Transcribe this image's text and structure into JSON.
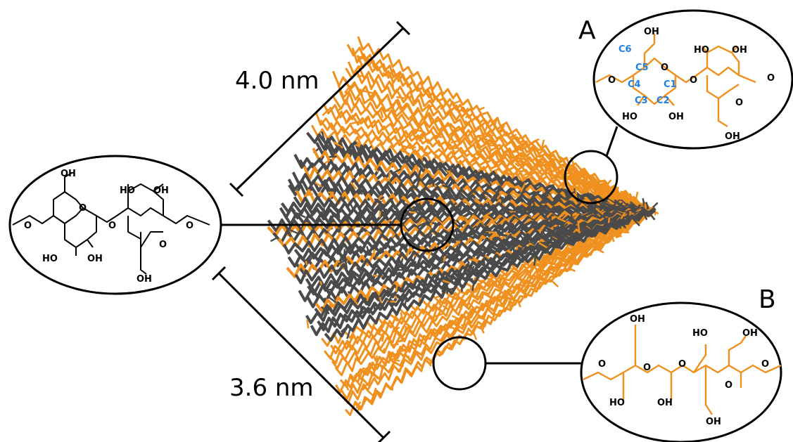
{
  "dimensions": {
    "length_label": "4.0 nm",
    "width_label": "3.6 nm"
  },
  "panels": {
    "a_label": "A",
    "b_label": "B"
  },
  "left_structure": {
    "oh_top": "OH",
    "ho_top": "HO",
    "oh_top_right": "OH",
    "ho_bottom": "HO",
    "oh_bottom": "OH",
    "oh_bottom_right": "OH",
    "ring_o1": "O",
    "ring_o2": "O",
    "link_o": "O",
    "terminal_o_left": "O",
    "terminal_o_right": "O"
  },
  "structure_a": {
    "oh_top": "OH",
    "ho_right": "HO",
    "oh_right": "OH",
    "ho_bottom": "HO",
    "oh_bottom": "OH",
    "oh_bottom_right": "OH",
    "ring_o1": "O",
    "ring_o2": "O",
    "link_o": "O",
    "terminal_o_left": "O",
    "terminal_o_right": "O",
    "carbons": [
      "C1",
      "C2",
      "C3",
      "C4",
      "C5",
      "C6"
    ]
  },
  "structure_b": {
    "oh_top": "OH",
    "ho_mid": "HO",
    "oh_mid": "OH",
    "ho_bottom": "HO",
    "oh_bottom": "OH",
    "oh_bottom_right": "OH",
    "o1": "O",
    "o2": "O",
    "o3": "O",
    "terminal_o_left": "O",
    "terminal_o_right": "O"
  },
  "colors": {
    "orange": "#f0901e",
    "dark_gray": "#4a4a4a",
    "carbon_blue": "#1f7fe0",
    "black": "#000000"
  }
}
